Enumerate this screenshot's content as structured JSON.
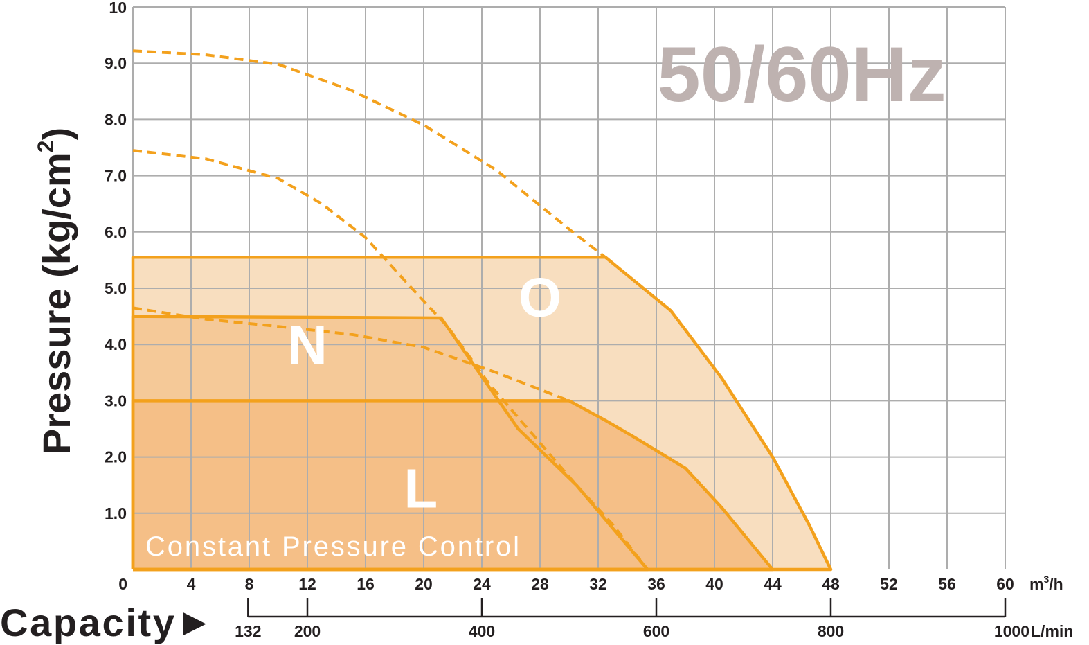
{
  "chart_data": {
    "type": "area",
    "title": "50/60Hz",
    "ylabel": "Pressure (kg/cm",
    "ylabel_sup": "2",
    "ylabel_close": ")",
    "xlabel": "Capacity",
    "xlabel_arrow": "▶",
    "x_unit": "m",
    "x_unit_sup": "3",
    "x_unit_rest": "/h",
    "x2_unit": "L/min",
    "xlim": [
      0,
      60
    ],
    "ylim": [
      0,
      10
    ],
    "grid": true,
    "x_ticks": [
      0,
      4,
      8,
      12,
      16,
      20,
      24,
      28,
      32,
      36,
      40,
      44,
      48,
      52,
      56,
      60
    ],
    "y_ticks": [
      {
        "value": 1,
        "label": "1.0"
      },
      {
        "value": 2,
        "label": "2.0"
      },
      {
        "value": 3,
        "label": "3.0"
      },
      {
        "value": 4,
        "label": "4.0"
      },
      {
        "value": 5,
        "label": "5.0"
      },
      {
        "value": 6,
        "label": "6.0"
      },
      {
        "value": 7,
        "label": "7.0"
      },
      {
        "value": 8,
        "label": "8.0"
      },
      {
        "value": 9,
        "label": "9.0"
      },
      {
        "value": 10,
        "label": "10"
      }
    ],
    "lmin_ticks": [
      {
        "label": "132",
        "at": 7.92
      },
      {
        "label": "200",
        "at": 12
      },
      {
        "label": "400",
        "at": 24
      },
      {
        "label": "600",
        "at": 36
      },
      {
        "label": "800",
        "at": 48
      },
      {
        "label": "1000",
        "at": 60
      }
    ],
    "regions": [
      {
        "name": "O",
        "label_at": [
          28,
          4.5
        ],
        "points": [
          [
            0,
            0
          ],
          [
            0,
            5.55
          ],
          [
            32.5,
            5.55
          ],
          [
            37,
            4.6
          ],
          [
            40.5,
            3.4
          ],
          [
            44,
            2.0
          ],
          [
            46.5,
            0.8
          ],
          [
            48,
            0
          ],
          [
            0,
            0
          ]
        ]
      },
      {
        "name": "N",
        "label_at": [
          12,
          3.65
        ],
        "points": [
          [
            0,
            0
          ],
          [
            0,
            4.5
          ],
          [
            21.2,
            4.47
          ],
          [
            26.5,
            2.5
          ],
          [
            30.5,
            1.5
          ],
          [
            35.4,
            0
          ],
          [
            0,
            0
          ]
        ]
      },
      {
        "name": "L",
        "label_at": [
          19.8,
          1.1
        ],
        "points": [
          [
            0,
            0
          ],
          [
            0,
            3.0
          ],
          [
            30,
            3.0
          ],
          [
            32.5,
            2.65
          ],
          [
            34.5,
            2.35
          ],
          [
            38,
            1.8
          ],
          [
            40.5,
            1.1
          ],
          [
            44,
            0
          ],
          [
            0,
            0
          ]
        ]
      }
    ],
    "dashed_curves": [
      {
        "points": [
          [
            0,
            9.22
          ],
          [
            5,
            9.15
          ],
          [
            10,
            8.98
          ],
          [
            15,
            8.52
          ],
          [
            20,
            7.9
          ],
          [
            25,
            7.1
          ],
          [
            30,
            6.05
          ],
          [
            32.5,
            5.55
          ]
        ]
      },
      {
        "points": [
          [
            0,
            7.45
          ],
          [
            5,
            7.3
          ],
          [
            10,
            6.95
          ],
          [
            13,
            6.5
          ],
          [
            16,
            5.9
          ],
          [
            19,
            5.05
          ],
          [
            21.7,
            4.3
          ],
          [
            24.5,
            3.3
          ],
          [
            27.5,
            2.4
          ],
          [
            30.5,
            1.5
          ],
          [
            33,
            0.8
          ],
          [
            35.4,
            0
          ]
        ]
      },
      {
        "points": [
          [
            0,
            4.65
          ],
          [
            5,
            4.45
          ],
          [
            10,
            4.32
          ],
          [
            15,
            4.18
          ],
          [
            20,
            3.95
          ],
          [
            25,
            3.5
          ],
          [
            30,
            3.0
          ]
        ]
      }
    ],
    "footer_label": "Constant Pressure Control",
    "colors": {
      "orange": "#F3A11D",
      "region_O": "#F8DEBF",
      "region_N": "#F5C998",
      "region_L": "#F5BF87",
      "grid": "#ADADAD",
      "title": "#BEB2B0",
      "text": "#231F20"
    }
  }
}
